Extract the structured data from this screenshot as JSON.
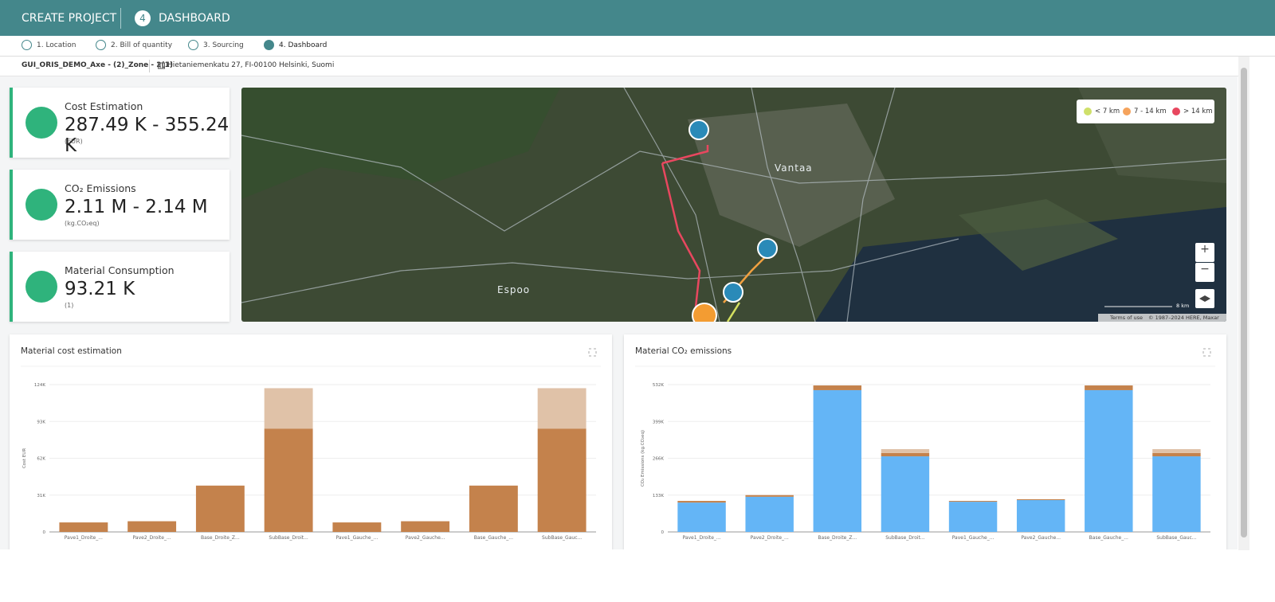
{
  "header": {
    "title": "CREATE PROJECT",
    "step_number": "4",
    "step_title": "DASHBOARD"
  },
  "steps": [
    "1. Location",
    "2. Bill of quantity",
    "3. Sourcing",
    "4. Dashboard"
  ],
  "breadcrumb": {
    "project": "GUI_ORIS_DEMO_Axe - (2)_Zone - 2(1)",
    "address": "Hietaniemenkatu 27, FI-00100 Helsinki, Suomi"
  },
  "cards": [
    {
      "title": "Cost Estimation",
      "value": "287.49 K - 355.24 K",
      "unit": "(EUR)"
    },
    {
      "title": "CO₂ Emissions",
      "value": "2.11 M - 2.14 M",
      "unit": "(kg.CO₂eq)"
    },
    {
      "title": "Material Consumption",
      "value": "93.21 K",
      "unit": "(1)"
    }
  ],
  "map": {
    "legend": [
      "< 7 km",
      "7 - 14 km",
      "> 14 km"
    ],
    "places": [
      "Vantaa",
      "Espoo"
    ],
    "terms": "Terms of use",
    "copyright": "© 1987–2024 HERE, Maxar",
    "scale": "8 km"
  },
  "chart_data": [
    {
      "type": "bar",
      "title": "Material cost estimation",
      "y_label": "Cost EUR",
      "categories": [
        "Pave1_Droite_...",
        "Pave2_Droite_...",
        "Base_Droite_Z...",
        "SubBase_Droit...",
        "Pave1_Gauche_...",
        "Pave2_Gauche...",
        "Base_Gauche_...",
        "SubBase_Gauc..."
      ],
      "series": [
        {
          "color": "#c4824c",
          "values": [
            8000,
            9000,
            39000,
            87000,
            8000,
            9000,
            39000,
            87000
          ]
        },
        {
          "color": "#e0c2a8",
          "values": [
            0,
            0,
            0,
            34000,
            0,
            0,
            0,
            34000
          ]
        }
      ],
      "ylim": [
        0,
        124000
      ],
      "yticks": [
        0,
        {
          "value": 31000,
          "label": "31K"
        },
        {
          "value": 62000,
          "label": "62K"
        },
        {
          "value": 93000,
          "label": "93K"
        },
        {
          "value": 124000,
          "label": "124K"
        }
      ],
      "grid": true
    },
    {
      "type": "bar",
      "title": "Material CO₂ emissions",
      "y_label": "CO₂ Emissions (kg.CO₂eq)",
      "categories": [
        "Pave1_Droite_...",
        "Pave2_Droite_...",
        "Base_Droite_Z...",
        "SubBase_Droit...",
        "Pave1_Gauche_...",
        "Pave2_Gauche...",
        "Base_Gauche_...",
        "SubBase_Gauc..."
      ],
      "series": [
        {
          "color": "#64b5f6",
          "values": [
            106000,
            127000,
            512000,
            273000,
            109000,
            115000,
            512000,
            273000
          ]
        },
        {
          "color": "#c4824c",
          "values": [
            6000,
            6000,
            17000,
            12000,
            3000,
            3000,
            17000,
            12000
          ]
        },
        {
          "color": "#e0c2a8",
          "values": [
            0,
            0,
            0,
            14000,
            0,
            0,
            0,
            14000
          ]
        }
      ],
      "ylim": [
        0,
        532000
      ],
      "yticks": [
        0,
        {
          "value": 133000,
          "label": "133K"
        },
        {
          "value": 266000,
          "label": "266K"
        },
        {
          "value": 399000,
          "label": "399K"
        },
        {
          "value": 532000,
          "label": "532K"
        }
      ],
      "grid": true
    }
  ]
}
